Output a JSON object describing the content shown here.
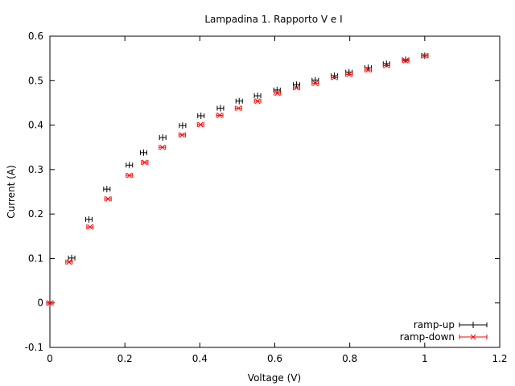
{
  "chart_data": {
    "type": "scatter",
    "title": "Lampadina 1. Rapporto V e I",
    "xlabel": "Voltage (V)",
    "ylabel": "Current (A)",
    "xlim": [
      0,
      1.2
    ],
    "ylim": [
      -0.1,
      0.6
    ],
    "xticks": [
      0,
      0.2,
      0.4,
      0.6,
      0.8,
      1,
      1.2
    ],
    "xtick_labels": [
      "0",
      "0.2",
      "0.4",
      "0.6",
      "0.8",
      "1",
      "1.2"
    ],
    "yticks": [
      -0.1,
      0,
      0.1,
      0.2,
      0.3,
      0.4,
      0.5,
      0.6
    ],
    "ytick_labels": [
      "-0.1",
      "0",
      "0.1",
      "0.2",
      "0.3",
      "0.4",
      "0.5",
      "0.6"
    ],
    "grid": false,
    "legend_position": "bottom-right",
    "series": [
      {
        "name": "ramp-up",
        "color": "#000000",
        "marker": "plus",
        "x": [
          0,
          0.058,
          0.104,
          0.152,
          0.212,
          0.25,
          0.301,
          0.354,
          0.403,
          0.455,
          0.505,
          0.554,
          0.606,
          0.658,
          0.708,
          0.759,
          0.798,
          0.849,
          0.898,
          0.949,
          1.0
        ],
        "y": [
          0,
          0.101,
          0.188,
          0.256,
          0.31,
          0.338,
          0.372,
          0.399,
          0.421,
          0.438,
          0.454,
          0.466,
          0.479,
          0.491,
          0.501,
          0.511,
          0.519,
          0.529,
          0.538,
          0.547,
          0.556
        ]
      },
      {
        "name": "ramp-down",
        "color": "#ff0000",
        "marker": "cross",
        "x": [
          0,
          0.051,
          0.107,
          0.155,
          0.212,
          0.253,
          0.3,
          0.353,
          0.402,
          0.453,
          0.503,
          0.554,
          0.607,
          0.658,
          0.708,
          0.759,
          0.798,
          0.849,
          0.898,
          0.949,
          1.0
        ],
        "y": [
          0,
          0.092,
          0.171,
          0.234,
          0.287,
          0.316,
          0.35,
          0.378,
          0.401,
          0.422,
          0.438,
          0.454,
          0.472,
          0.484,
          0.494,
          0.507,
          0.514,
          0.524,
          0.534,
          0.545,
          0.556
        ]
      }
    ]
  }
}
